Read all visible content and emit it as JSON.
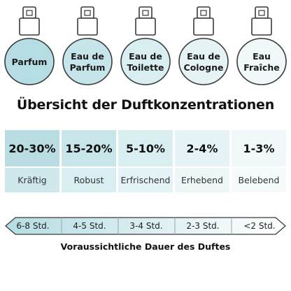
{
  "bottles": [
    {
      "label": "Parfum",
      "color": "#b5dde3"
    },
    {
      "label": "Eau de Parfum",
      "color": "#c6e5ea"
    },
    {
      "label": "Eau de Toilette",
      "color": "#d8eef1"
    },
    {
      "label": "Eau de Cologne",
      "color": "#e5f3f5"
    },
    {
      "label": "Eau Fraîche",
      "color": "#f0f8f9"
    }
  ],
  "title": "Übersicht der Duftkonzentrationen",
  "concentrations": [
    {
      "percent": "20-30%",
      "character": "Kräftig",
      "top_color": "#b9dde3",
      "bot_color": "#cfe8ec"
    },
    {
      "percent": "15-20%",
      "character": "Robust",
      "top_color": "#c8e5ea",
      "bot_color": "#d9eef1"
    },
    {
      "percent": "5-10%",
      "character": "Erfrischend",
      "top_color": "#d9eef1",
      "bot_color": "#e4f3f5"
    },
    {
      "percent": "2-4%",
      "character": "Erhebend",
      "top_color": "#e6f3f6",
      "bot_color": "#edf7f8"
    },
    {
      "percent": "1-3%",
      "character": "Belebend",
      "top_color": "#f0f8f9",
      "bot_color": "#f5fafb"
    }
  ],
  "durations": [
    "6-8 Std.",
    "4-5 Std.",
    "3-4 Std.",
    "2-3 Std.",
    "<2 Std."
  ],
  "duration_caption": "Voraussichtliche Dauer des Duftes",
  "colors": {
    "outline": "#3a3a3a",
    "arrow_fill_start": "#b5dde3",
    "arrow_fill_end": "#ffffff"
  }
}
